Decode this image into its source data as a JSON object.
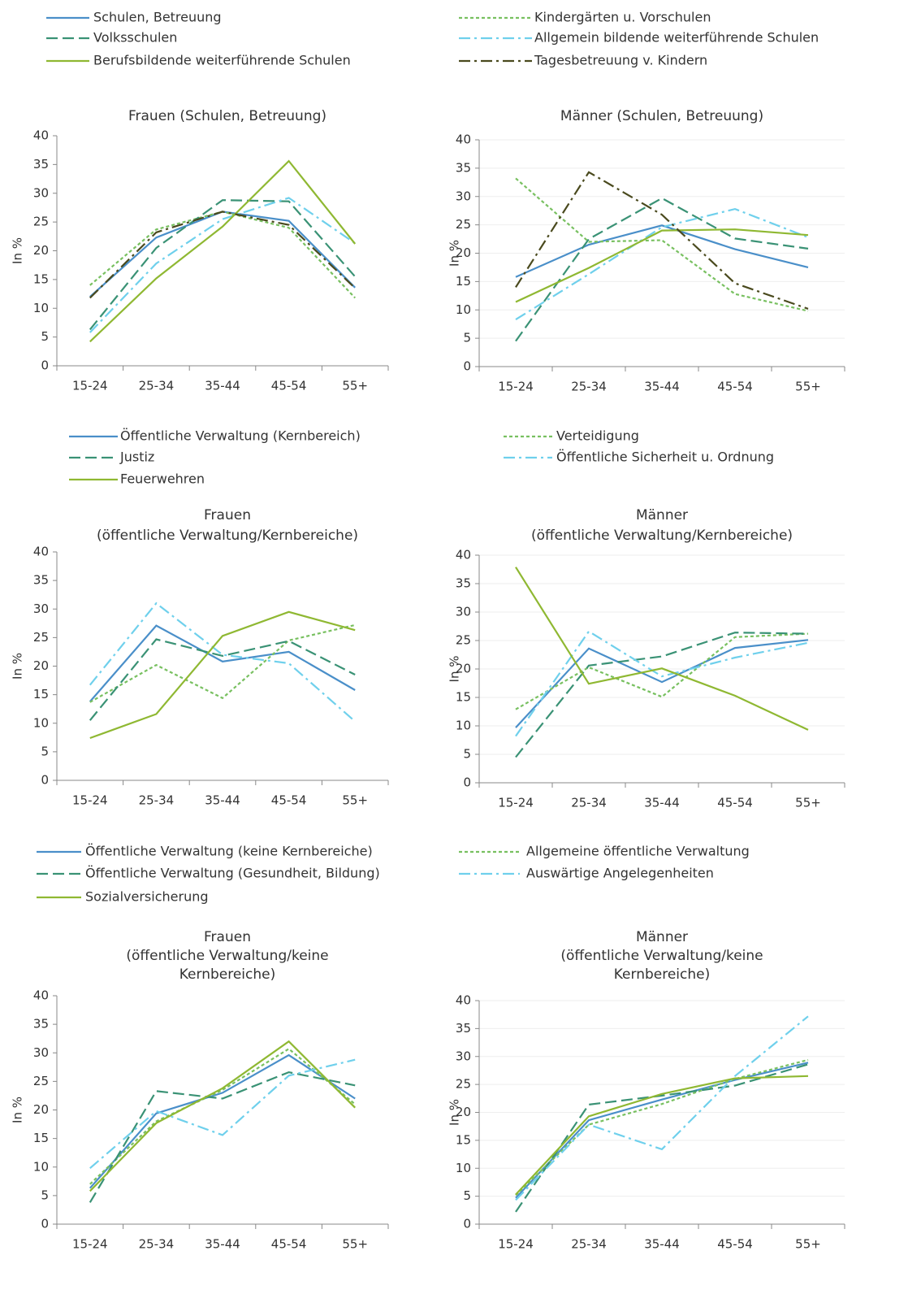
{
  "chart_data": [
    {
      "type": "line",
      "title": [
        "Frauen (Schulen, Betreuung)"
      ],
      "ylabel": "In %",
      "categories": [
        "15-24",
        "25-34",
        "35-44",
        "45-54",
        "55+"
      ],
      "ylim": [
        0,
        40
      ],
      "yticks": [
        0,
        5,
        10,
        15,
        20,
        25,
        30,
        35,
        40
      ],
      "grid": false,
      "series": [
        {
          "name": "Schulen, Betreuung",
          "color": "#4a8fc9",
          "style": "solid",
          "values": [
            12,
            22.3,
            26.8,
            25.2,
            13.6
          ]
        },
        {
          "name": "Kindergärten u. Vorschulen",
          "color": "#78c060",
          "style": "dotted",
          "values": [
            14,
            23.7,
            26.8,
            24,
            11.8
          ]
        },
        {
          "name": "Volksschulen",
          "color": "#3a9275",
          "style": "dashed",
          "values": [
            6.3,
            20.5,
            28.8,
            28.6,
            15.5
          ]
        },
        {
          "name": "Allgemein bildende weiterführende Schulen",
          "color": "#6fd0ec",
          "style": "dashdot",
          "values": [
            5.8,
            17.8,
            25.5,
            29.2,
            21.3
          ]
        },
        {
          "name": "Berufsbildende weiterführende Schulen",
          "color": "#8fb832",
          "style": "solid",
          "values": [
            4.2,
            15.2,
            24.2,
            35.6,
            21.2
          ]
        },
        {
          "name": "Tagesbetreuung v. Kindern",
          "color": "#4a4a1e",
          "style": "dashdot",
          "values": [
            11.8,
            23.2,
            26.8,
            24.5,
            13.5
          ]
        }
      ]
    },
    {
      "type": "line",
      "title": [
        "Männer (Schulen, Betreuung)"
      ],
      "ylabel": "In %",
      "categories": [
        "15-24",
        "25-34",
        "35-44",
        "45-54",
        "55+"
      ],
      "ylim": [
        0,
        40
      ],
      "yticks": [
        0,
        5,
        10,
        15,
        20,
        25,
        30,
        35,
        40
      ],
      "grid": true,
      "series": [
        {
          "name": "Schulen, Betreuung",
          "color": "#4a8fc9",
          "style": "solid",
          "values": [
            15.8,
            21.5,
            24.9,
            20.7,
            17.5
          ]
        },
        {
          "name": "Kindergärten u. Vorschulen",
          "color": "#78c060",
          "style": "dotted",
          "values": [
            33.2,
            22,
            22.3,
            12.8,
            9.8
          ]
        },
        {
          "name": "Volksschulen",
          "color": "#3a9275",
          "style": "dashed",
          "values": [
            4.5,
            22.5,
            29.7,
            22.6,
            20.8
          ]
        },
        {
          "name": "Allgemein bildende weiterführende Schulen",
          "color": "#6fd0ec",
          "style": "dashdot",
          "values": [
            8.3,
            16.3,
            24.6,
            27.8,
            22.8
          ]
        },
        {
          "name": "Berufsbildende weiterführende Schulen",
          "color": "#8fb832",
          "style": "solid",
          "values": [
            11.4,
            17.4,
            24,
            24.2,
            23.2
          ]
        },
        {
          "name": "Tagesbetreuung v. Kindern",
          "color": "#4a4a1e",
          "style": "dashdot",
          "values": [
            14,
            34.3,
            26.8,
            14.7,
            10.2
          ]
        }
      ]
    },
    {
      "type": "line",
      "title": [
        "Frauen",
        "(öffentliche Verwaltung/Kernbereiche)"
      ],
      "ylabel": "In %",
      "categories": [
        "15-24",
        "25-34",
        "35-44",
        "45-54",
        "55+"
      ],
      "ylim": [
        0,
        40
      ],
      "yticks": [
        0,
        5,
        10,
        15,
        20,
        25,
        30,
        35,
        40
      ],
      "grid": false,
      "series": [
        {
          "name": "Öffentliche Verwaltung (Kernbereich)",
          "color": "#4a8fc9",
          "style": "solid",
          "values": [
            13.8,
            27.1,
            20.8,
            22.5,
            15.8
          ]
        },
        {
          "name": "Verteidigung",
          "color": "#78c060",
          "style": "dotted",
          "values": [
            13.7,
            20.2,
            14.4,
            24.5,
            27.2
          ]
        },
        {
          "name": "Justiz",
          "color": "#3a9275",
          "style": "dashed",
          "values": [
            10.5,
            24.7,
            21.8,
            24.4,
            18.5
          ]
        },
        {
          "name": "Öffentliche Sicherheit u. Ordnung",
          "color": "#6fd0ec",
          "style": "dashdot",
          "values": [
            16.7,
            31,
            22,
            20.5,
            10.3
          ]
        },
        {
          "name": "Feuerwehren",
          "color": "#8fb832",
          "style": "solid",
          "values": [
            7.4,
            11.6,
            25.3,
            29.5,
            26.3
          ]
        }
      ]
    },
    {
      "type": "line",
      "title": [
        "Männer",
        "(öffentliche Verwaltung/Kernbereiche)"
      ],
      "ylabel": "In %",
      "categories": [
        "15-24",
        "25-34",
        "35-44",
        "45-54",
        "55+"
      ],
      "ylim": [
        0,
        40
      ],
      "yticks": [
        0,
        5,
        10,
        15,
        20,
        25,
        30,
        35,
        40
      ],
      "grid": true,
      "series": [
        {
          "name": "Öffentliche Verwaltung (Kernbereich)",
          "color": "#4a8fc9",
          "style": "solid",
          "values": [
            9.7,
            23.6,
            17.7,
            23.7,
            25.1
          ]
        },
        {
          "name": "Verteidigung",
          "color": "#78c060",
          "style": "dotted",
          "values": [
            12.9,
            20.3,
            15.1,
            25.6,
            26.2
          ]
        },
        {
          "name": "Justiz",
          "color": "#3a9275",
          "style": "dashed",
          "values": [
            4.5,
            20.6,
            22.2,
            26.4,
            26.2
          ]
        },
        {
          "name": "Öffentliche Sicherheit u. Ordnung",
          "color": "#6fd0ec",
          "style": "dashdot",
          "values": [
            8.2,
            26.6,
            18.7,
            22,
            24.6
          ]
        },
        {
          "name": "Feuerwehren",
          "color": "#8fb832",
          "style": "solid",
          "values": [
            37.9,
            17.4,
            20.1,
            15.3,
            9.3
          ]
        }
      ]
    },
    {
      "type": "line",
      "title": [
        "Frauen",
        "(öffentliche Verwaltung/keine",
        "Kernbereiche)"
      ],
      "ylabel": "In %",
      "categories": [
        "15-24",
        "25-34",
        "35-44",
        "45-54",
        "55+"
      ],
      "ylim": [
        0,
        40
      ],
      "yticks": [
        0,
        5,
        10,
        15,
        20,
        25,
        30,
        35,
        40
      ],
      "grid": false,
      "series": [
        {
          "name": "Öffentliche Verwaltung (keine Kernbereiche)",
          "color": "#4a8fc9",
          "style": "solid",
          "values": [
            6.3,
            19.4,
            23,
            29.6,
            22
          ]
        },
        {
          "name": "Allgemeine öffentliche Verwaltung",
          "color": "#78c060",
          "style": "dotted",
          "values": [
            7,
            18,
            23.5,
            30.7,
            21
          ]
        },
        {
          "name": "Öffentliche Verwaltung (Gesundheit, Bildung)",
          "color": "#3a9275",
          "style": "dashed",
          "values": [
            3.8,
            23.3,
            22,
            26.6,
            24.3
          ]
        },
        {
          "name": "Auswärtige Angelegenheiten",
          "color": "#6fd0ec",
          "style": "dashdot",
          "values": [
            9.8,
            19.8,
            15.6,
            26,
            28.8
          ]
        },
        {
          "name": "Sozialversicherung",
          "color": "#8fb832",
          "style": "solid",
          "values": [
            5.8,
            17.7,
            23.8,
            32,
            20.4
          ]
        }
      ]
    },
    {
      "type": "line",
      "title": [
        "Männer",
        "(öffentliche Verwaltung/keine",
        "Kernbereiche)"
      ],
      "ylabel": "In %",
      "categories": [
        "15-24",
        "25-34",
        "35-44",
        "45-54",
        "55+"
      ],
      "ylim": [
        0,
        40
      ],
      "yticks": [
        0,
        5,
        10,
        15,
        20,
        25,
        30,
        35,
        40
      ],
      "grid": true,
      "series": [
        {
          "name": "Öffentliche Verwaltung (keine Kernbereiche)",
          "color": "#4a8fc9",
          "style": "solid",
          "values": [
            4.7,
            18.6,
            22.3,
            25.8,
            28.9
          ]
        },
        {
          "name": "Allgemeine öffentliche Verwaltung",
          "color": "#78c060",
          "style": "dotted",
          "values": [
            5.2,
            17.8,
            21.5,
            26,
            29.4
          ]
        },
        {
          "name": "Öffentliche Verwaltung (Gesundheit, Bildung)",
          "color": "#3a9275",
          "style": "dashed",
          "values": [
            2.2,
            21.4,
            23,
            24.8,
            28.6
          ]
        },
        {
          "name": "Auswärtige Angelegenheiten",
          "color": "#6fd0ec",
          "style": "dashdot",
          "values": [
            4.3,
            17.8,
            13.4,
            26.5,
            37.2
          ]
        },
        {
          "name": "Sozialversicherung",
          "color": "#8fb832",
          "style": "solid",
          "values": [
            5.3,
            19.3,
            23.3,
            26.1,
            26.5
          ]
        }
      ]
    }
  ]
}
